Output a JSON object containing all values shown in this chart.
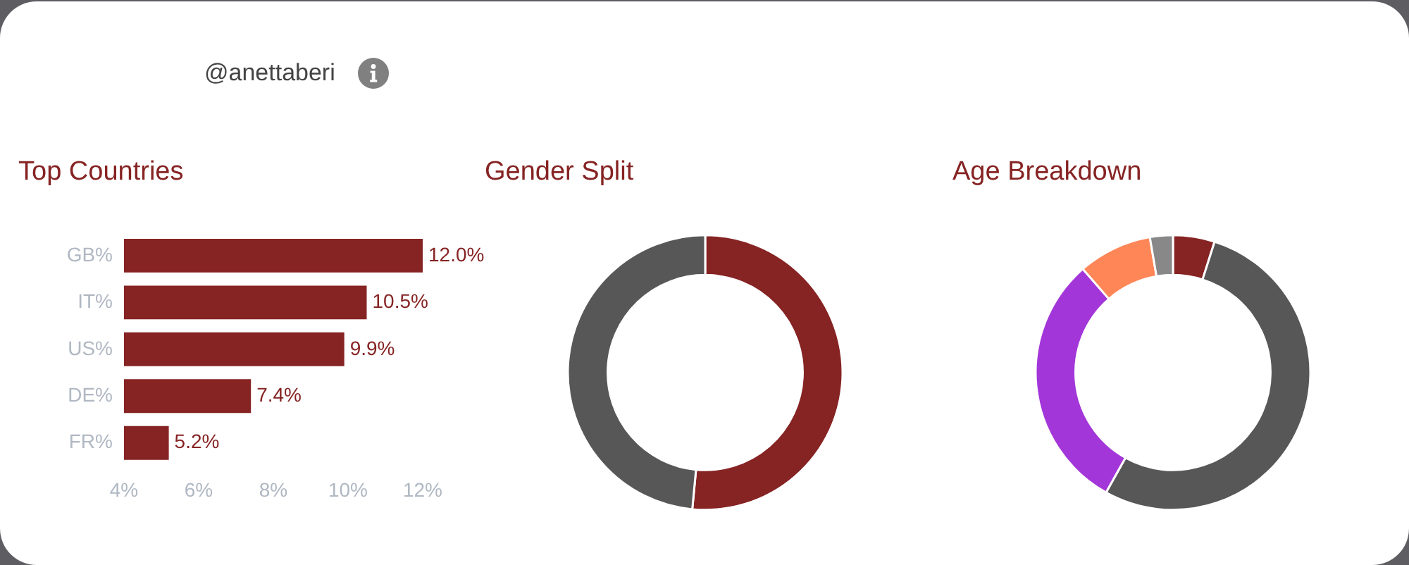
{
  "chart_data": [
    {
      "type": "bar",
      "orientation": "horizontal",
      "title": "Top Countries",
      "annotations": [
        "@anettaberi"
      ],
      "categories": [
        "GB%",
        "IT%",
        "US%",
        "DE%",
        "FR%"
      ],
      "values": [
        12.0,
        10.5,
        9.9,
        7.4,
        5.2
      ],
      "color": "#862323",
      "value_labels": [
        "12.0%",
        "10.5%",
        "9.9%",
        "7.4%",
        "5.2%"
      ],
      "xlim": [
        4,
        12
      ],
      "xticks": [
        {
          "value": 4,
          "label": "4%"
        },
        {
          "value": 6,
          "label": "6%"
        },
        {
          "value": 8,
          "label": "8%"
        },
        {
          "value": 10,
          "label": "10%"
        },
        {
          "value": 12,
          "label": "12%"
        }
      ]
    },
    {
      "type": "donut",
      "title": "Gender Split",
      "categories": [
        null,
        null
      ],
      "values": [
        51.5,
        48.5
      ],
      "colors": [
        "#862323",
        "#575757"
      ]
    },
    {
      "type": "donut",
      "title": "Age Breakdown",
      "categories": [
        null,
        null,
        null,
        null,
        null
      ],
      "values": [
        4.9,
        53.2,
        30.5,
        8.7,
        2.7
      ],
      "colors": [
        "#862323",
        "#575757",
        "#a336d9",
        "#ff8657",
        "#888888"
      ]
    }
  ]
}
